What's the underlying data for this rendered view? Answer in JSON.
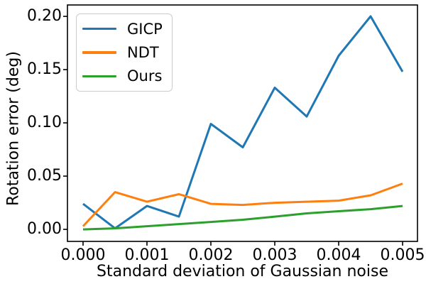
{
  "chart_data": {
    "type": "line",
    "title": "",
    "xlabel": "Standard deviation of Gaussian noise",
    "ylabel": "Rotation error (deg)",
    "x": [
      0.0,
      0.0005,
      0.001,
      0.0015,
      0.002,
      0.0025,
      0.003,
      0.0035,
      0.004,
      0.0045,
      0.005
    ],
    "series": [
      {
        "name": "GICP",
        "color": "#1f77b4",
        "values": [
          0.024,
          0.001,
          0.022,
          0.012,
          0.099,
          0.077,
          0.133,
          0.106,
          0.163,
          0.2,
          0.148
        ]
      },
      {
        "name": "NDT",
        "color": "#ff7f0e",
        "values": [
          0.003,
          0.035,
          0.026,
          0.033,
          0.024,
          0.023,
          0.025,
          0.026,
          0.027,
          0.032,
          0.043
        ]
      },
      {
        "name": "Ours",
        "color": "#2ca02c",
        "values": [
          0.0,
          0.001,
          0.003,
          0.005,
          0.007,
          0.009,
          0.012,
          0.015,
          0.017,
          0.019,
          0.022
        ]
      }
    ],
    "xticks": [
      0.0,
      0.001,
      0.002,
      0.003,
      0.004,
      0.005
    ],
    "xticklabels": [
      "0.000",
      "0.001",
      "0.002",
      "0.003",
      "0.004",
      "0.005"
    ],
    "yticks": [
      0.0,
      0.05,
      0.1,
      0.15,
      0.2
    ],
    "yticklabels": [
      "0.00",
      "0.05",
      "0.10",
      "0.15",
      "0.20"
    ],
    "xlim": [
      -0.000244,
      0.005233
    ],
    "ylim": [
      -0.0113,
      0.2107
    ],
    "grid": false,
    "legend_position": "upper left"
  },
  "colors": {
    "axes_frame": "#000000",
    "tick": "#000000",
    "legend_border": "#cccccc"
  }
}
